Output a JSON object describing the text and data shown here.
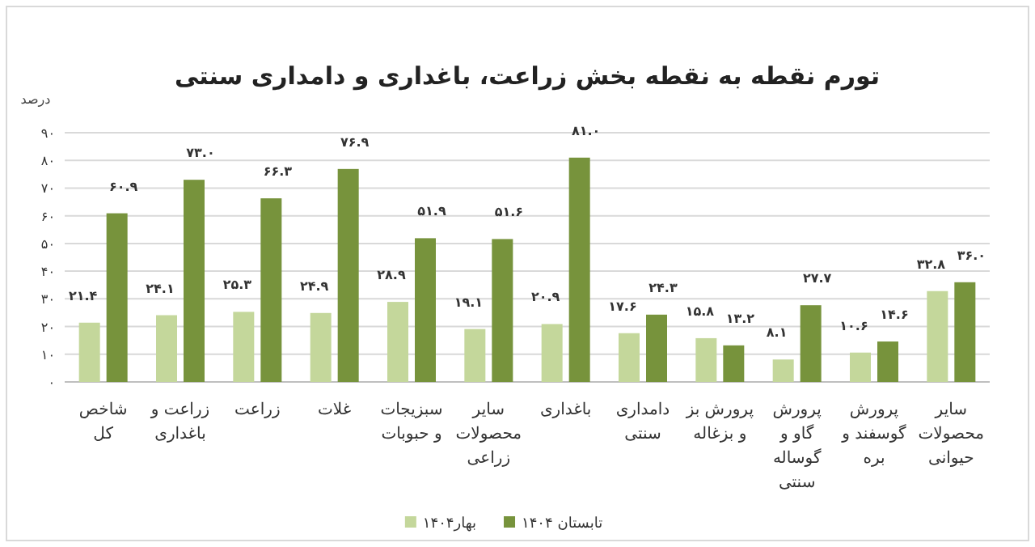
{
  "chart_data": {
    "type": "bar",
    "title": "تورم نقطه به نقطه بخش زراعت، باغداری و دامداری سنتی",
    "ylabel": "درصد",
    "categories": [
      "شاخص کل",
      "زراعت و باغداری",
      "زراعت",
      "غلات",
      "سبزیجات و حبوبات",
      "سایر محصولات زراعی",
      "باغداری",
      "دامداری سنتی",
      "پرورش بز و بزغاله",
      "پرورش گاو و گوساله سنتی",
      "پرورش گوسفند و بره",
      "سایر محصولات حیوانی"
    ],
    "series": [
      {
        "name": "بهار۱۴۰۴",
        "color": "#c4d79b",
        "values": [
          21.4,
          24.1,
          25.3,
          24.9,
          28.9,
          19.1,
          20.9,
          17.6,
          15.8,
          8.1,
          10.6,
          32.8
        ],
        "value_labels": [
          "۲۱.۴",
          "۲۴.۱",
          "۲۵.۳",
          "۲۴.۹",
          "۲۸.۹",
          "۱۹.۱",
          "۲۰.۹",
          "۱۷.۶",
          "۱۵.۸",
          "۸.۱",
          "۱۰.۶",
          "۳۲.۸"
        ]
      },
      {
        "name": "تابستان ۱۴۰۴",
        "color": "#77933c",
        "values": [
          60.9,
          73.0,
          66.3,
          76.9,
          51.9,
          51.6,
          81.0,
          24.3,
          13.2,
          27.7,
          14.6,
          36.0
        ],
        "value_labels": [
          "۶۰.۹",
          "۷۳.۰",
          "۶۶.۳",
          "۷۶.۹",
          "۵۱.۹",
          "۵۱.۶",
          "۸۱.۰",
          "۲۴.۳",
          "۱۳.۲",
          "۲۷.۷",
          "۱۴.۶",
          "۳۶.۰"
        ]
      }
    ],
    "ylim": [
      0,
      90
    ],
    "yticks": [
      {
        "value": 0,
        "label": "۰"
      },
      {
        "value": 10,
        "label": "۱۰"
      },
      {
        "value": 20,
        "label": "۲۰"
      },
      {
        "value": 30,
        "label": "۳۰"
      },
      {
        "value": 40,
        "label": "۴۰"
      },
      {
        "value": 50,
        "label": "۵۰"
      },
      {
        "value": 60,
        "label": "۶۰"
      },
      {
        "value": 70,
        "label": "۷۰"
      },
      {
        "value": 80,
        "label": "۸۰"
      },
      {
        "value": 90,
        "label": "۹۰"
      }
    ],
    "grid": "y",
    "legend": "bottom"
  }
}
